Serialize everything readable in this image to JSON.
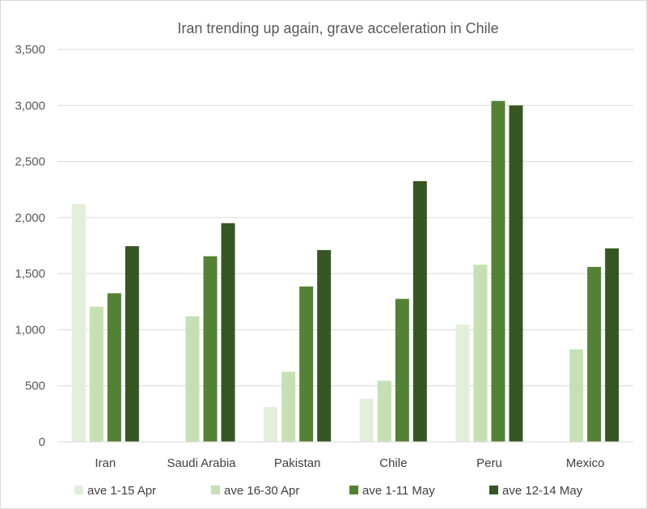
{
  "chart_data": {
    "type": "bar",
    "title": "Iran trending up again, grave acceleration in Chile",
    "xlabel": "",
    "ylabel": "",
    "ylim": [
      0,
      3500
    ],
    "yticks": [
      0,
      500,
      1000,
      1500,
      2000,
      2500,
      3000,
      3500
    ],
    "ytick_labels": [
      "0",
      "500",
      "1,000",
      "1,500",
      "2,000",
      "2,500",
      "3,000",
      "3,500"
    ],
    "grid": true,
    "legend_position": "bottom",
    "categories": [
      "Iran",
      "Saudi Arabia",
      "Pakistan",
      "Chile",
      "Peru",
      "Mexico"
    ],
    "series": [
      {
        "name": "ave 1-15 Apr",
        "color": "#e2efda",
        "values": [
          2120,
          null,
          310,
          385,
          1045,
          null
        ]
      },
      {
        "name": "ave 16-30 Apr",
        "color": "#c6e0b4",
        "values": [
          1205,
          1120,
          625,
          545,
          1580,
          825
        ]
      },
      {
        "name": "ave 1-11 May",
        "color": "#548235",
        "values": [
          1325,
          1655,
          1385,
          1275,
          3040,
          1560
        ]
      },
      {
        "name": "ave 12-14 May",
        "color": "#375623",
        "values": [
          1745,
          1950,
          1710,
          2325,
          3000,
          1725
        ]
      }
    ]
  }
}
